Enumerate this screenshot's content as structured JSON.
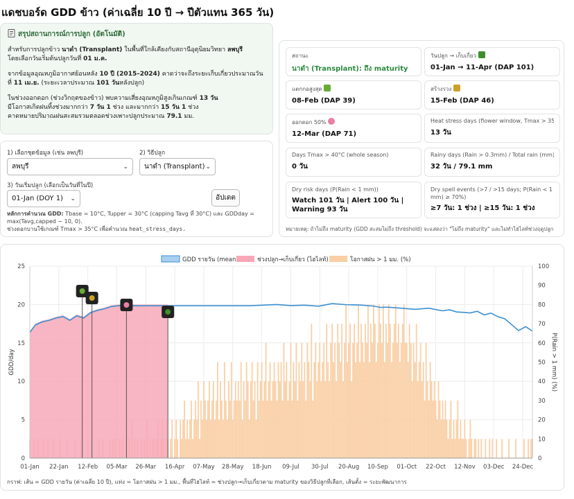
{
  "page": {
    "title": "แดชบอร์ด GDD ข้าว (ค่าเฉลี่ย 10 ปี → ปีตัวแทน 365 วัน)"
  },
  "summary": {
    "heading": "สรุปสถานการณ์การปลูก (อัตโนมัติ)",
    "p1": [
      "สำหรับการปลูกข้าว ",
      "นาดำ (Transplant)",
      " ในพื้นที่ใกล้เคียงกับสถานีอุตุนิยมวิทยา ",
      "ลพบุรี",
      "",
      "โดยเลือกวันเริ่มต้นปลูกวันที่ ",
      "01 ม.ค."
    ],
    "p2": [
      "จากข้อมูลอุณหภูมิอากาศย้อนหลัง ",
      "10 ปี (2015–2024)",
      " คาดว่าจะถึงระยะเก็บเกี่ยวประมาณวันที่ ",
      "11 เม.ย.",
      " (ระยะเวลาประมาณ ",
      "101 วัน",
      "หลังปลูก)"
    ],
    "p3": [
      "ในช่วงออกดอก (ช่วงวิกฤตของข้าว) พบความเสี่ยงอุณหภูมิสูงเกินเกณฑ์ ",
      "13 วัน",
      "มีโอกาสเกิดฝนทิ้งช่วงมากกว่า ",
      "7 วัน 1",
      " ช่วง และมากกว่า ",
      "15 วัน 1",
      " ช่วง",
      "คาดหมายปริมาณฝนสะสมรวมตลอดช่วงเพาะปลูกประมาณ ",
      "79.1",
      " มม."
    ]
  },
  "controls": {
    "station_label": "1) เลือกชุดข้อมูล (เช่น ลพบุรี)",
    "station_value": "ลพบุรี",
    "method_label": "2) วิธีปลูก",
    "method_value": "นาดำ (Transplant)",
    "start_label": "3) วันเริ่มปลูก (เลือกเป็นวันที่ในปี)",
    "start_value": "01-Jan (DOY 1)",
    "update_button": "อัปเดต",
    "note_bold": "หลักการคำนวณ GDD:",
    "note_text": " Tbase = 10°C, Tupper = 30°C (capping Tavg ที่ 30°C) และ GDDday = max(Tavg,capped − 10, 0).",
    "note_text2": "ช่วงดอกบานใช้เกณฑ์ Tmax > 35°C เพื่อคำนวณ ",
    "note_code": "heat_stress_days."
  },
  "metrics": [
    {
      "label": "สถานะ",
      "value": "นาดำ (Transplant): ถึง maturity",
      "green": true
    },
    {
      "label": "วันปลูก → เก็บเกี่ยว",
      "value": "01-Jan → 11-Apr (DAP 101)",
      "icon": "harvest-icon"
    },
    {
      "label": "แตกกอสูงสุด",
      "value": "08-Feb (DAP 39)",
      "icon": "tiller-icon"
    },
    {
      "label": "สร้างรวง",
      "value": "15-Feb (DAP 46)",
      "icon": "panicle-icon"
    },
    {
      "label": "ออกดอก 50%",
      "value": "12-Mar (DAP 71)",
      "icon": "flower-icon"
    },
    {
      "label": "Heat stress days (flower window, Tmax > 35°C)",
      "value": "13 วัน"
    },
    {
      "label": "Days Tmax > 40°C (whole season)",
      "value": "0 วัน"
    },
    {
      "label": "Rainy days (Rain > 0.3mm) / Total rain (mm)",
      "value": "32 วัน / 79.1 mm"
    },
    {
      "label": "Dry risk days (P(Rain < 1 mm))",
      "value": "Watch 101 วัน | Alert 100 วัน | Warning 93 วัน"
    },
    {
      "label": "Dry spell events (>7 / >15 days; P(Rain < 1 mm) ≥ 70%)",
      "value": "≥7 วัน: 1 ช่วง | ≥15 วัน: 1 ช่วง"
    }
  ],
  "metrics_footnote": "หมายเหตุ: ถ้าไม่ถึง maturity (GDD สะสมไม่ถึง threshold) จะแสดงว่า \"ไม่ถึง maturity\" และไม่ทำไฮไลท์ช่วงฤดูปลูก",
  "chart_caption": "กราฟ: เส้น = GDD รายวัน (ค่าเฉลี่ย 10 ปี), แท่ง = โอกาสฝน > 1 มม., พื้นที่ไฮไลท์ = ช่วงปลูก→เก็บเกี่ยวตาม maturity ของวิธีปลูกที่เลือก, เส้นตั้ง = ระยะพัฒนาการ",
  "colors": {
    "gdd_line": "#3b8fd0",
    "season_fill": "#f7a8b8",
    "rain_bar": "#f9cfa5",
    "marker_bg": "#222222"
  },
  "chart_data": {
    "type": "line+bar",
    "title": "",
    "legend": [
      "GDD รายวัน (mean)",
      "ช่วงปลูก→เก็บเกี่ยว (ไฮไลท์)",
      "โอกาสฝน > 1 มม. (%)"
    ],
    "xlabel": "",
    "ylabel_left": "GDD/day",
    "ylabel_right": "P(Rain > 1 mm) (%)",
    "ylim_left": [
      0,
      25
    ],
    "ylim_right": [
      0,
      100
    ],
    "yticks_left": [
      0,
      5,
      10,
      15,
      20,
      25
    ],
    "yticks_right": [
      0,
      10,
      20,
      30,
      40,
      50,
      60,
      70,
      80,
      90,
      100
    ],
    "xtick_labels": [
      "01-Jan",
      "22-Jan",
      "12-Feb",
      "05-Mar",
      "26-Mar",
      "16-Apr",
      "07-May",
      "28-May",
      "18-Jun",
      "09-Jul",
      "30-Jul",
      "20-Aug",
      "10-Sep",
      "01-Oct",
      "22-Oct",
      "12-Nov",
      "03-Dec",
      "24-Dec"
    ],
    "xtick_days": [
      1,
      22,
      43,
      64,
      85,
      106,
      127,
      148,
      169,
      190,
      211,
      232,
      253,
      274,
      295,
      316,
      337,
      358
    ],
    "season_highlight_days": [
      1,
      101
    ],
    "stage_markers": [
      {
        "day": 39,
        "name": "แตกกอสูงสุด",
        "icon": "tiller-icon"
      },
      {
        "day": 46,
        "name": "สร้างรวง",
        "icon": "panicle-icon"
      },
      {
        "day": 71,
        "name": "ออกดอก 50%",
        "icon": "flower-icon"
      },
      {
        "day": 101,
        "name": "เก็บเกี่ยว",
        "icon": "harvest-icon"
      }
    ],
    "gdd_series": {
      "name": "GDD รายวัน (mean)",
      "x": [
        1,
        5,
        10,
        15,
        20,
        25,
        30,
        35,
        40,
        45,
        50,
        55,
        60,
        65,
        70,
        75,
        80,
        90,
        100,
        120,
        140,
        160,
        180,
        190,
        200,
        210,
        220,
        230,
        240,
        250,
        255,
        260,
        270,
        280,
        290,
        300,
        305,
        310,
        315,
        320,
        325,
        330,
        335,
        340,
        345,
        350,
        355,
        360,
        365
      ],
      "values": [
        16.3,
        17.5,
        17.9,
        18.1,
        18.4,
        18.6,
        18.1,
        18.7,
        18.4,
        19.1,
        19.4,
        19.6,
        19.9,
        20.0,
        20.0,
        20.0,
        20.0,
        20.0,
        20.0,
        20.0,
        20.0,
        20.0,
        20.0,
        19.9,
        20.0,
        19.9,
        20.0,
        19.9,
        19.9,
        19.8,
        19.5,
        19.7,
        19.6,
        19.5,
        19.4,
        19.1,
        19.4,
        19.0,
        19.1,
        18.9,
        19.0,
        18.7,
        18.8,
        18.5,
        18.1,
        17.5,
        16.6,
        17.0,
        16.6
      ]
    },
    "rain_prob_series": {
      "name": "โอกาสฝน > 1 มม. (%)",
      "x_range_days": [
        1,
        365
      ],
      "values_by_month": [
        {
          "month": "Jan",
          "values": [
            10,
            0,
            0,
            10,
            0,
            0,
            10,
            0,
            0,
            0,
            10,
            0,
            0,
            10,
            0,
            0,
            0,
            10,
            0,
            0,
            0,
            0,
            10,
            0,
            0,
            0,
            0,
            10,
            0,
            0,
            0
          ]
        },
        {
          "month": "Feb",
          "values": [
            0,
            0,
            10,
            0,
            0,
            0,
            10,
            0,
            0,
            0,
            0,
            10,
            0,
            0,
            10,
            0,
            0,
            0,
            0,
            10,
            0,
            0,
            10,
            0,
            0,
            0,
            0,
            10
          ]
        },
        {
          "month": "Mar",
          "values": [
            0,
            10,
            0,
            10,
            0,
            0,
            10,
            0,
            10,
            0,
            0,
            10,
            0,
            10,
            0,
            20,
            0,
            10,
            0,
            10,
            0,
            0,
            10,
            0,
            10,
            0,
            20,
            0,
            10,
            0,
            10
          ]
        },
        {
          "month": "Apr",
          "values": [
            10,
            0,
            10,
            20,
            0,
            10,
            20,
            10,
            0,
            20,
            10,
            0,
            10,
            20,
            0,
            10,
            20,
            10,
            0,
            20,
            10,
            20,
            30,
            10,
            20,
            10,
            20,
            30,
            10,
            20
          ]
        },
        {
          "month": "May",
          "values": [
            30,
            20,
            40,
            10,
            30,
            20,
            40,
            30,
            20,
            30,
            40,
            20,
            30,
            40,
            20,
            30,
            50,
            20,
            40,
            30,
            20,
            50,
            30,
            20,
            40,
            30,
            50,
            20,
            30,
            40,
            30
          ]
        },
        {
          "month": "Jun",
          "values": [
            40,
            30,
            50,
            20,
            40,
            30,
            50,
            40,
            20,
            40,
            50,
            30,
            40,
            20,
            50,
            30,
            40,
            50,
            30,
            40,
            60,
            30,
            40,
            50,
            30,
            40,
            50,
            40,
            30,
            50
          ]
        },
        {
          "month": "Jul",
          "values": [
            40,
            50,
            30,
            60,
            40,
            50,
            30,
            40,
            60,
            30,
            50,
            40,
            60,
            30,
            50,
            40,
            60,
            40,
            50,
            30,
            60,
            50,
            40,
            70,
            30,
            50,
            60,
            40,
            50,
            60,
            40
          ]
        },
        {
          "month": "Aug",
          "values": [
            50,
            60,
            40,
            70,
            50,
            40,
            60,
            70,
            50,
            60,
            40,
            70,
            60,
            50,
            70,
            40,
            60,
            80,
            50,
            60,
            70,
            40,
            60,
            70,
            50,
            60,
            80,
            50,
            70,
            60,
            50
          ]
        },
        {
          "month": "Sep",
          "values": [
            70,
            60,
            80,
            50,
            70,
            60,
            80,
            70,
            50,
            60,
            80,
            70,
            60,
            80,
            50,
            70,
            60,
            80,
            70,
            50,
            60,
            70,
            80,
            60,
            70,
            50,
            60,
            70,
            80,
            60
          ]
        },
        {
          "month": "Oct",
          "values": [
            60,
            50,
            70,
            60,
            40,
            60,
            50,
            70,
            40,
            50,
            60,
            40,
            50,
            30,
            60,
            40,
            30,
            50,
            40,
            30,
            40,
            30,
            20,
            40,
            30,
            20,
            30,
            20,
            30,
            20,
            10
          ]
        },
        {
          "month": "Nov",
          "values": [
            20,
            30,
            10,
            20,
            10,
            20,
            30,
            10,
            20,
            10,
            10,
            20,
            10,
            0,
            10,
            20,
            10,
            0,
            10,
            10,
            0,
            10,
            0,
            10,
            0,
            0,
            10,
            0,
            0,
            10
          ]
        },
        {
          "month": "Dec",
          "values": [
            0,
            10,
            0,
            0,
            10,
            0,
            0,
            0,
            10,
            0,
            0,
            0,
            0,
            10,
            0,
            0,
            0,
            0,
            10,
            0,
            0,
            0,
            0,
            0,
            10,
            0,
            0,
            10,
            0,
            10,
            10
          ]
        }
      ]
    }
  }
}
